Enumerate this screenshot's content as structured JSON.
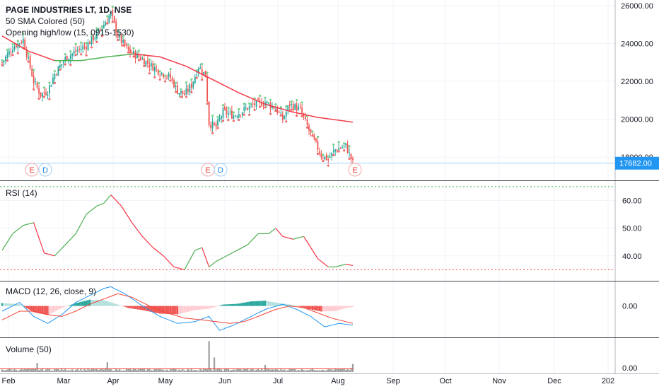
{
  "legend": {
    "symbol": "PAGE INDUSTRIES LT, 1D, NSE",
    "sma": "50 SMA Colored (50)",
    "opening": "Opening high/low (15, 0915-1530)"
  },
  "panes": {
    "rsi_title": "RSI (14)",
    "macd_title": "MACD (12, 26, close, 9)",
    "volume_title": "Volume (50)"
  },
  "price_badge": "17682.00",
  "event_markers": [
    "E",
    "D",
    "E",
    "D",
    "E"
  ],
  "colors": {
    "up": "#26a69a",
    "down": "#ef5350",
    "sma_down": "#f23645",
    "sma_up": "#4caf50",
    "price_badge": "#2196f3",
    "rsi_line_up": "#4caf50",
    "rsi_line_down": "#f23645",
    "macd_line": "#2196f3",
    "signal_line": "#f44336",
    "volume": "#9e9e9e"
  },
  "chart_data": [
    {
      "type": "candlestick",
      "title": "PAGE INDUSTRIES LT, 1D, NSE",
      "x_ticks": [
        "Feb",
        "Mar",
        "Apr",
        "May",
        "Jun",
        "Jul",
        "Aug",
        "Sep",
        "Oct",
        "Nov",
        "Dec",
        "202"
      ],
      "y_ticks": [
        "18000.00",
        "20000.00",
        "22000.00",
        "24000.00",
        "26000.00"
      ],
      "ylim": [
        17000,
        26300
      ],
      "last_price": 17682,
      "close_anchors": [
        [
          0,
          23000
        ],
        [
          6,
          23800
        ],
        [
          12,
          24200
        ],
        [
          18,
          22000
        ],
        [
          22,
          21300
        ],
        [
          26,
          21500
        ],
        [
          30,
          22400
        ],
        [
          36,
          23200
        ],
        [
          42,
          23600
        ],
        [
          48,
          23900
        ],
        [
          54,
          24500
        ],
        [
          58,
          25000
        ],
        [
          62,
          25600
        ],
        [
          66,
          24400
        ],
        [
          72,
          23600
        ],
        [
          78,
          23300
        ],
        [
          84,
          22900
        ],
        [
          90,
          22500
        ],
        [
          96,
          22200
        ],
        [
          100,
          21500
        ],
        [
          104,
          21300
        ],
        [
          108,
          21800
        ],
        [
          112,
          22800
        ],
        [
          116,
          22300
        ],
        [
          118,
          19800
        ],
        [
          122,
          19600
        ],
        [
          126,
          20400
        ],
        [
          132,
          20200
        ],
        [
          138,
          20500
        ],
        [
          144,
          20800
        ],
        [
          150,
          20900
        ],
        [
          156,
          20600
        ],
        [
          160,
          20000
        ],
        [
          164,
          20800
        ],
        [
          170,
          20500
        ],
        [
          176,
          19200
        ],
        [
          182,
          18100
        ],
        [
          186,
          17900
        ],
        [
          190,
          18400
        ],
        [
          196,
          18600
        ],
        [
          200,
          17700
        ]
      ],
      "sma_anchors": [
        [
          0,
          24400
        ],
        [
          15,
          23600
        ],
        [
          30,
          23100
        ],
        [
          45,
          23100
        ],
        [
          60,
          23300
        ],
        [
          75,
          23450
        ],
        [
          90,
          23300
        ],
        [
          105,
          22800
        ],
        [
          120,
          22100
        ],
        [
          135,
          21400
        ],
        [
          150,
          20800
        ],
        [
          165,
          20400
        ],
        [
          180,
          20100
        ],
        [
          200,
          19850
        ]
      ]
    },
    {
      "type": "line",
      "title": "RSI (14)",
      "y_ticks": [
        "40.00",
        "50.00",
        "60.00"
      ],
      "ylim": [
        31,
        67
      ],
      "band_lines": [
        65,
        35
      ],
      "x": [
        0,
        6,
        12,
        18,
        24,
        30,
        36,
        42,
        48,
        54,
        58,
        62,
        68,
        74,
        80,
        86,
        92,
        98,
        104,
        110,
        114,
        118,
        122,
        128,
        134,
        140,
        146,
        152,
        156,
        160,
        166,
        172,
        176,
        180,
        186,
        190,
        196,
        200
      ],
      "values": [
        42,
        48,
        51,
        52,
        41,
        40,
        44,
        48,
        55,
        58,
        59,
        62,
        58,
        52,
        47,
        43,
        40,
        36,
        35,
        42,
        43,
        36,
        38,
        40,
        42,
        44,
        48,
        48,
        50,
        47,
        46,
        47,
        43,
        39,
        36,
        36,
        37,
        36.5
      ]
    },
    {
      "type": "bar",
      "title": "MACD (12, 26, close, 9)",
      "y_ticks": [
        "0.00"
      ],
      "ylim": [
        -900,
        700
      ],
      "histogram_anchors": [
        [
          0,
          80
        ],
        [
          10,
          50
        ],
        [
          18,
          -180
        ],
        [
          26,
          -260
        ],
        [
          34,
          -60
        ],
        [
          42,
          80
        ],
        [
          50,
          180
        ],
        [
          58,
          160
        ],
        [
          66,
          40
        ],
        [
          72,
          -60
        ],
        [
          80,
          -120
        ],
        [
          90,
          -220
        ],
        [
          100,
          -240
        ],
        [
          110,
          -120
        ],
        [
          118,
          -80
        ],
        [
          126,
          40
        ],
        [
          134,
          60
        ],
        [
          142,
          130
        ],
        [
          150,
          150
        ],
        [
          158,
          80
        ],
        [
          166,
          30
        ],
        [
          174,
          -80
        ],
        [
          182,
          -160
        ],
        [
          190,
          -150
        ],
        [
          196,
          -60
        ],
        [
          200,
          -30
        ]
      ],
      "macd_anchors": [
        [
          0,
          -150
        ],
        [
          10,
          100
        ],
        [
          18,
          -300
        ],
        [
          26,
          -500
        ],
        [
          34,
          -250
        ],
        [
          42,
          100
        ],
        [
          50,
          300
        ],
        [
          58,
          500
        ],
        [
          62,
          550
        ],
        [
          70,
          350
        ],
        [
          80,
          0
        ],
        [
          90,
          -300
        ],
        [
          100,
          -500
        ],
        [
          110,
          -450
        ],
        [
          118,
          -300
        ],
        [
          124,
          -700
        ],
        [
          132,
          -550
        ],
        [
          142,
          -300
        ],
        [
          150,
          -100
        ],
        [
          160,
          50
        ],
        [
          168,
          -100
        ],
        [
          176,
          -300
        ],
        [
          184,
          -600
        ],
        [
          192,
          -500
        ],
        [
          200,
          -550
        ]
      ],
      "signal_anchors": [
        [
          0,
          -400
        ],
        [
          10,
          -150
        ],
        [
          18,
          -150
        ],
        [
          26,
          -250
        ],
        [
          34,
          -300
        ],
        [
          42,
          -150
        ],
        [
          50,
          50
        ],
        [
          58,
          200
        ],
        [
          66,
          350
        ],
        [
          74,
          250
        ],
        [
          84,
          0
        ],
        [
          94,
          -200
        ],
        [
          104,
          -350
        ],
        [
          114,
          -400
        ],
        [
          122,
          -450
        ],
        [
          130,
          -500
        ],
        [
          138,
          -450
        ],
        [
          146,
          -300
        ],
        [
          156,
          -100
        ],
        [
          164,
          0
        ],
        [
          172,
          -50
        ],
        [
          180,
          -200
        ],
        [
          188,
          -350
        ],
        [
          196,
          -450
        ],
        [
          200,
          -500
        ]
      ]
    },
    {
      "type": "bar",
      "title": "Volume (50)",
      "y_ticks": [
        "0.00"
      ],
      "ylim": [
        0,
        100
      ],
      "spikes": [
        [
          118,
          95
        ],
        [
          121,
          45
        ],
        [
          200,
          25
        ],
        [
          20,
          28
        ],
        [
          60,
          30
        ],
        [
          150,
          22
        ]
      ],
      "base_level": 8,
      "avg_level": 10
    }
  ]
}
